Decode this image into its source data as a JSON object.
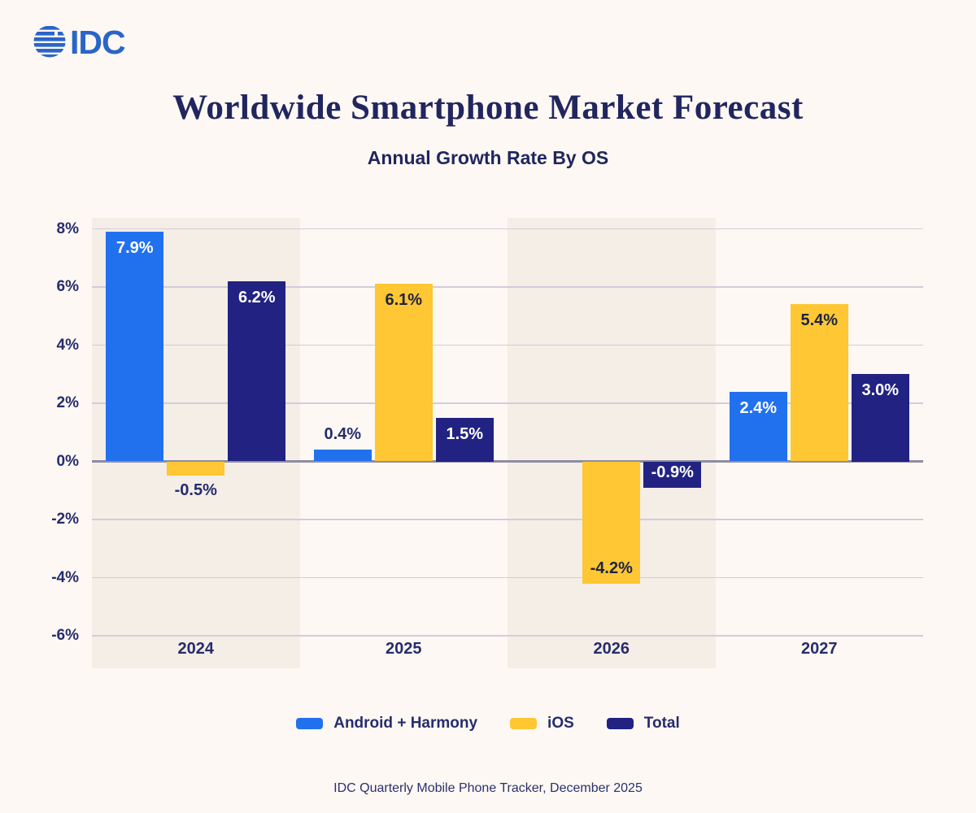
{
  "logo": {
    "text": "IDC",
    "color": "#2a65c8"
  },
  "title": "Worldwide Smartphone Market Forecast",
  "subtitle": "Annual Growth Rate By OS",
  "source": "IDC Quarterly Mobile Phone Tracker, December 2025",
  "colors": {
    "page_bg": "#fdf8f3",
    "band_bg": "#f4eee7",
    "gridline": "#d2ccdc",
    "zero_line": "#8f8ca3",
    "text_navy": "#262c6d",
    "label_on_yellow": "#1d2244",
    "label_on_dark": "#ffffff"
  },
  "chart_data": {
    "type": "bar",
    "title": "Worldwide Smartphone Market Forecast",
    "subtitle": "Annual Growth Rate By OS",
    "categories": [
      "2024",
      "2025",
      "2026",
      "2027"
    ],
    "series": [
      {
        "name": "Android + Harmony",
        "color": "#2171ef",
        "values": [
          7.9,
          0.4,
          0.0,
          2.4
        ],
        "labels": [
          "7.9%",
          "0.4%",
          "",
          "2.4%"
        ]
      },
      {
        "name": "iOS",
        "color": "#fec733",
        "values": [
          -0.5,
          6.1,
          -4.2,
          5.4
        ],
        "labels": [
          "-0.5%",
          "6.1%",
          "-4.2%",
          "5.4%"
        ]
      },
      {
        "name": "Total",
        "color": "#212282",
        "values": [
          6.2,
          1.5,
          -0.9,
          3.0
        ],
        "labels": [
          "6.2%",
          "1.5%",
          "-0.9%",
          "3.0%"
        ]
      }
    ],
    "y_ticks": [
      8,
      6,
      4,
      2,
      0,
      -2,
      -4,
      -6
    ],
    "y_tick_labels": [
      "8%",
      "6%",
      "4%",
      "2%",
      "0%",
      "-2%",
      "-4%",
      "-6%"
    ],
    "ylim": [
      -7.1,
      8.4
    ],
    "grid": true,
    "highlight_bands": [
      0,
      2
    ],
    "legend_position": "bottom",
    "xlabel": "",
    "ylabel": ""
  },
  "legend": {
    "items": [
      {
        "label": "Android + Harmony",
        "color": "#2171ef"
      },
      {
        "label": "iOS",
        "color": "#fec733"
      },
      {
        "label": "Total",
        "color": "#212282"
      }
    ]
  }
}
